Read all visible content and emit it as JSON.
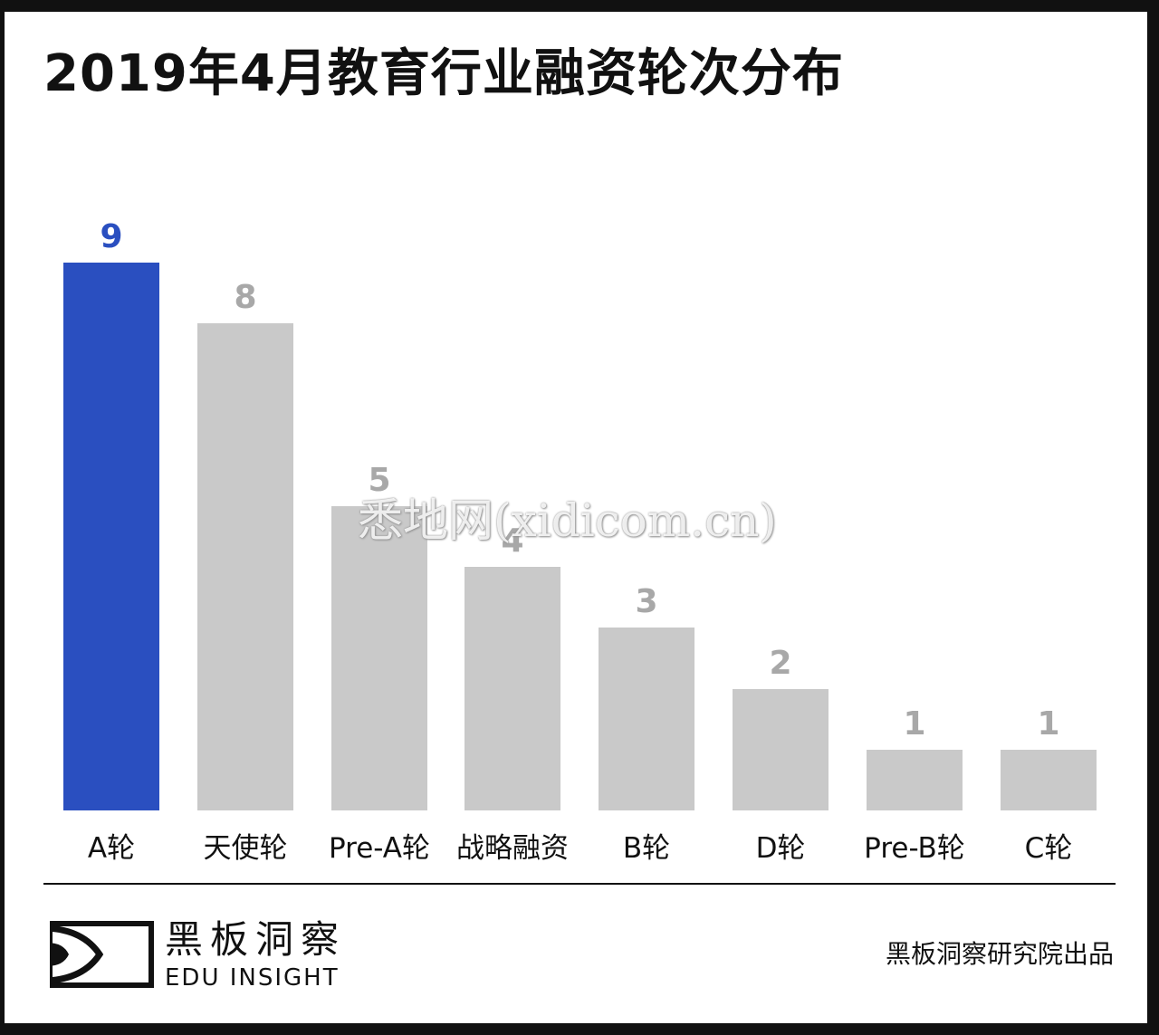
{
  "title": "2019年4月教育行业融资轮次分布",
  "chart_data": {
    "type": "bar",
    "title": "2019年4月教育行业融资轮次分布",
    "categories": [
      "A轮",
      "天使轮",
      "Pre-A轮",
      "战略融资",
      "B轮",
      "D轮",
      "Pre-B轮",
      "C轮"
    ],
    "values": [
      9,
      8,
      5,
      4,
      3,
      2,
      1,
      1
    ],
    "highlight_index": 0,
    "colors": {
      "highlight": "#2a4fc0",
      "default": "#c9c9c9",
      "default_label": "#a8a8a8"
    },
    "xlabel": "",
    "ylabel": "",
    "ylim": [
      0,
      9
    ],
    "grid": false,
    "legend": "none"
  },
  "labels": [
    "9",
    "8",
    "5",
    "4",
    "3",
    "2",
    "1",
    "1"
  ],
  "watermark": "悉地网(xidicom.cn)",
  "footer": {
    "brand_cn": "黑板洞察",
    "brand_en": "EDU INSIGHT",
    "credit": "黑板洞察研究院出品"
  }
}
